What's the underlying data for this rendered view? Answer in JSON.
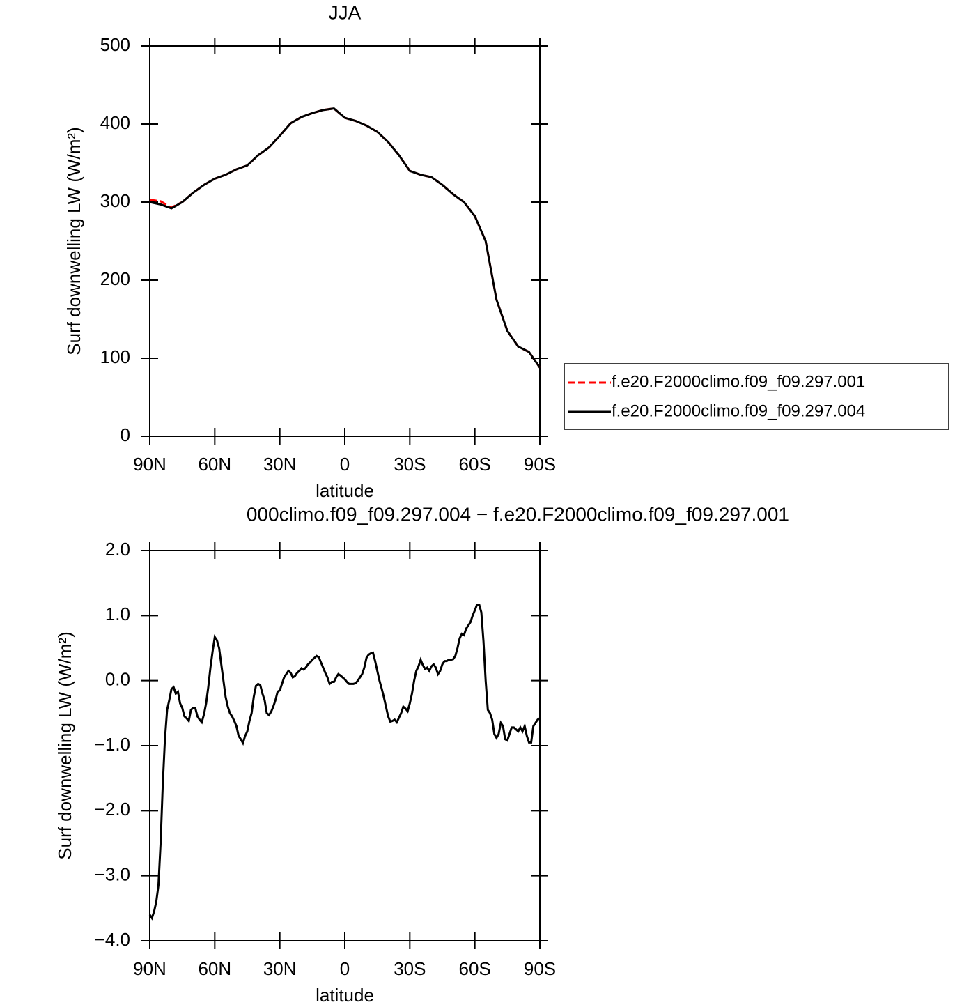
{
  "chart_data": [
    {
      "type": "line",
      "title": "JJA",
      "x_label": "latitude",
      "y_label": "Surf downwelling LW (W/m²)",
      "x": [
        90,
        85,
        80,
        75,
        70,
        65,
        60,
        55,
        50,
        45,
        40,
        35,
        30,
        25,
        20,
        15,
        10,
        5,
        0,
        -5,
        -10,
        -15,
        -20,
        -25,
        -30,
        -35,
        -40,
        -45,
        -50,
        -55,
        -60,
        -65,
        -70,
        -75,
        -80,
        -85,
        -90
      ],
      "series": [
        {
          "name": "f.e20.F2000climo.f09_f09.297.001",
          "color": "#ff0000",
          "dash": true,
          "values": [
            303,
            301,
            293,
            300,
            312,
            322,
            330,
            335,
            342,
            347,
            360,
            370,
            385,
            401,
            409,
            414,
            418,
            420,
            408,
            404,
            398,
            390,
            377,
            360,
            340,
            335,
            332,
            322,
            310,
            300,
            282,
            250,
            175,
            135,
            115,
            108,
            88
          ]
        },
        {
          "name": "f.e20.F2000climo.f09_f09.297.004",
          "color": "#000000",
          "dash": false,
          "values": [
            300,
            297,
            292,
            300,
            312,
            322,
            330,
            335,
            342,
            347,
            360,
            370,
            385,
            401,
            409,
            414,
            418,
            420,
            408,
            404,
            398,
            390,
            377,
            360,
            340,
            335,
            332,
            322,
            310,
            300,
            282,
            250,
            175,
            135,
            115,
            108,
            88
          ]
        }
      ],
      "xlim": [
        90,
        -90
      ],
      "xticks": [
        {
          "value": 90,
          "label": "90N"
        },
        {
          "value": 60,
          "label": "60N"
        },
        {
          "value": 30,
          "label": "30N"
        },
        0,
        {
          "value": -30,
          "label": "30S"
        },
        {
          "value": -60,
          "label": "60S"
        },
        {
          "value": -90,
          "label": "90S"
        }
      ],
      "ylim": [
        0,
        500
      ],
      "yticks": [
        0,
        100,
        200,
        300,
        400,
        500
      ],
      "legend": "right"
    },
    {
      "type": "line",
      "title": "000climo.f09_f09.297.004 − f.e20.F2000climo.f09_f09.297.001",
      "x_label": "latitude",
      "y_label": "Surf downwelling LW (W/m²)",
      "x": [
        90,
        89,
        88,
        87,
        86,
        85,
        84,
        83,
        82,
        81,
        80,
        79,
        78,
        77,
        76,
        75,
        74,
        73,
        72,
        71,
        70,
        69,
        68,
        67,
        66,
        65,
        64,
        63,
        62,
        61,
        60,
        59,
        58,
        57,
        56,
        55,
        54,
        53,
        52,
        51,
        50,
        49,
        48,
        47,
        46,
        45,
        44,
        43,
        42,
        41,
        40,
        39,
        38,
        37,
        36,
        35,
        34,
        33,
        32,
        31,
        30,
        29,
        28,
        27,
        26,
        25,
        24,
        23,
        22,
        21,
        20,
        19,
        18,
        17,
        16,
        15,
        14,
        13,
        12,
        11,
        10,
        9,
        8,
        7,
        6,
        5,
        4,
        3,
        2,
        1,
        0,
        -1,
        -2,
        -3,
        -4,
        -5,
        -6,
        -7,
        -8,
        -9,
        -10,
        -11,
        -12,
        -13,
        -14,
        -15,
        -16,
        -17,
        -18,
        -19,
        -20,
        -21,
        -22,
        -23,
        -24,
        -25,
        -26,
        -27,
        -28,
        -29,
        -30,
        -31,
        -32,
        -33,
        -34,
        -35,
        -36,
        -37,
        -38,
        -39,
        -40,
        -41,
        -42,
        -43,
        -44,
        -45,
        -46,
        -47,
        -48,
        -49,
        -50,
        -51,
        -52,
        -53,
        -54,
        -55,
        -56,
        -57,
        -58,
        -59,
        -60,
        -61,
        -62,
        -63,
        -64,
        -65,
        -66,
        -67,
        -68,
        -69,
        -70,
        -71,
        -72,
        -73,
        -74,
        -75,
        -76,
        -77,
        -78,
        -79,
        -80,
        -81,
        -82,
        -83,
        -84,
        -85,
        -86,
        -87,
        -88,
        -89,
        -90
      ],
      "series": [
        {
          "color": "#000000",
          "values": [
            -3.6,
            -3.65,
            -3.55,
            -3.4,
            -3.15,
            -2.5,
            -1.6,
            -0.9,
            -0.45,
            -0.3,
            -0.13,
            -0.1,
            -0.2,
            -0.17,
            -0.35,
            -0.42,
            -0.55,
            -0.58,
            -0.62,
            -0.45,
            -0.42,
            -0.42,
            -0.55,
            -0.6,
            -0.64,
            -0.52,
            -0.35,
            -0.1,
            0.2,
            0.45,
            0.67,
            0.62,
            0.5,
            0.25,
            0.0,
            -0.25,
            -0.4,
            -0.5,
            -0.55,
            -0.62,
            -0.7,
            -0.85,
            -0.9,
            -0.96,
            -0.85,
            -0.78,
            -0.62,
            -0.5,
            -0.25,
            -0.08,
            -0.05,
            -0.07,
            -0.2,
            -0.3,
            -0.5,
            -0.53,
            -0.48,
            -0.4,
            -0.3,
            -0.17,
            -0.15,
            -0.05,
            0.05,
            0.1,
            0.15,
            0.12,
            0.05,
            0.07,
            0.12,
            0.15,
            0.19,
            0.17,
            0.2,
            0.25,
            0.28,
            0.32,
            0.35,
            0.38,
            0.36,
            0.28,
            0.2,
            0.12,
            0.05,
            -0.05,
            -0.02,
            -0.02,
            0.05,
            0.1,
            0.08,
            0.05,
            0.02,
            -0.02,
            -0.05,
            -0.05,
            -0.05,
            -0.04,
            0.0,
            0.05,
            0.1,
            0.2,
            0.35,
            0.4,
            0.42,
            0.43,
            0.3,
            0.15,
            0.0,
            -0.12,
            -0.25,
            -0.4,
            -0.55,
            -0.63,
            -0.62,
            -0.6,
            -0.64,
            -0.57,
            -0.5,
            -0.4,
            -0.43,
            -0.47,
            -0.35,
            -0.2,
            0.0,
            0.15,
            0.22,
            0.32,
            0.24,
            0.18,
            0.2,
            0.15,
            0.22,
            0.25,
            0.2,
            0.1,
            0.15,
            0.25,
            0.3,
            0.3,
            0.32,
            0.32,
            0.33,
            0.38,
            0.5,
            0.65,
            0.72,
            0.7,
            0.8,
            0.85,
            0.9,
            1.0,
            1.08,
            1.17,
            1.17,
            1.05,
            0.6,
            0.0,
            -0.45,
            -0.5,
            -0.6,
            -0.82,
            -0.88,
            -0.82,
            -0.65,
            -0.7,
            -0.9,
            -0.92,
            -0.82,
            -0.72,
            -0.72,
            -0.75,
            -0.78,
            -0.72,
            -0.78,
            -0.7,
            -0.85,
            -0.95,
            -0.95,
            -0.7,
            -0.65,
            -0.6,
            -0.58
          ]
        }
      ],
      "xlim": [
        90,
        -90
      ],
      "xticks": [
        {
          "value": 90,
          "label": "90N"
        },
        {
          "value": 60,
          "label": "60N"
        },
        {
          "value": 30,
          "label": "30N"
        },
        0,
        {
          "value": -30,
          "label": "30S"
        },
        {
          "value": -60,
          "label": "60S"
        },
        {
          "value": -90,
          "label": "90S"
        }
      ],
      "ylim": [
        -4,
        2
      ],
      "yticks": [
        {
          "value": -4,
          "label": "−4.0"
        },
        {
          "value": -3,
          "label": "−3.0"
        },
        {
          "value": -2,
          "label": "−2.0"
        },
        {
          "value": -1,
          "label": "−1.0"
        },
        {
          "value": 0,
          "label": "0.0"
        },
        {
          "value": 1,
          "label": "1.0"
        },
        {
          "value": 2,
          "label": "2.0"
        }
      ]
    }
  ]
}
